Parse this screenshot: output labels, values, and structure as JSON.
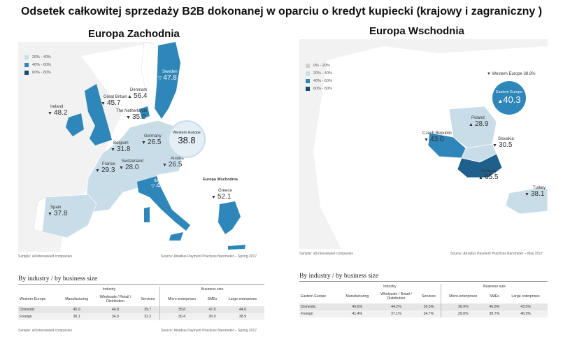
{
  "title": "Odsetek całkowitej sprzedaży B2B dokonanej w oparciu o kredyt kupiecki (krajowy i zagraniczny )",
  "colors": {
    "light": "#c9dde9",
    "mid": "#2e86b9",
    "dark": "#1f5f8c",
    "darkest": "#154a72",
    "gray": "#d0d0d0"
  },
  "west": {
    "panel_title": "Europa Zachodnia",
    "legend": [
      "20% - 40%",
      "40% - 60%",
      "60% - 80%"
    ],
    "countries": [
      {
        "name": "Ireland",
        "value": "48.2",
        "tri": "▼"
      },
      {
        "name": "Great Britain",
        "value": "45.7",
        "tri": "▼"
      },
      {
        "name": "Denmark",
        "value": "56.4",
        "tri": "▲"
      },
      {
        "name": "Sweden",
        "value": "47.8",
        "tri": "▽"
      },
      {
        "name": "The Netherlands",
        "value": "35.0",
        "tri": "▼"
      },
      {
        "name": "Germany",
        "value": "26.5",
        "tri": "▼"
      },
      {
        "name": "Belgium",
        "value": "31.8",
        "tri": "▼"
      },
      {
        "name": "France",
        "value": "29.3",
        "tri": "▼"
      },
      {
        "name": "Switzerland",
        "value": "28.0",
        "tri": "▼"
      },
      {
        "name": "Austria",
        "value": "26.5",
        "tri": "▼"
      },
      {
        "name": "Italy",
        "value": "42.5",
        "tri": "▽"
      },
      {
        "name": "Spain",
        "value": "37.8",
        "tri": "▼"
      },
      {
        "name": "Greece",
        "value": "52.1",
        "tri": "▼"
      }
    ],
    "bubble": {
      "label": "Western Europe",
      "value": "38.8"
    },
    "overlay_label": "Europa Wschodnia",
    "sample": "Sample: all interviewed companies",
    "source": "Source: Atradius Payment Practices Barometer – Spring 2017",
    "section_title": "By industry / by business size",
    "table": {
      "group_industry": "Industry",
      "group_size": "Business size",
      "region": "Western Europe",
      "headers": [
        "Manufacturing",
        "Wholesale / Retail / Distribution",
        "Services",
        "Micro-enterprises",
        "SMEs",
        "Large enterprises"
      ],
      "rows": [
        {
          "label": "Domestic",
          "values": [
            "45.9",
            "44.8",
            "39.7",
            "35.8",
            "47.0",
            "44.0"
          ]
        },
        {
          "label": "Foreign",
          "values": [
            "39.1",
            "34.0",
            "33.2",
            "30.4",
            "36.0",
            "38.9"
          ]
        }
      ],
      "sample": "Sample: all interviewed companies",
      "source": "Source: Atradius Payment Practices Barometer – Spring 2017"
    }
  },
  "east": {
    "panel_title": "Europa Wschodnia",
    "legend": [
      "0% - 20%",
      "20% - 40%",
      "40% - 60%",
      "60% - 80%"
    ],
    "countries": [
      {
        "name": "Poland",
        "value": "28.9",
        "tri": "▲"
      },
      {
        "name": "Czech Republic",
        "value": "43.0",
        "tri": "▼"
      },
      {
        "name": "Slovakia",
        "value": "30.5",
        "tri": "▼"
      },
      {
        "name": "Hungary",
        "value": "65.5",
        "tri": "▲"
      },
      {
        "name": "Turkey",
        "value": "38.1",
        "tri": "▼"
      }
    ],
    "western_ref": {
      "label": "Western Europe",
      "value": "38.8%",
      "tri": "▼"
    },
    "bubble": {
      "label": "Eastern Europe",
      "value": "40.3",
      "tri": "▲"
    },
    "sample": "Sample: all interviewed companies",
    "source": "Source: Atradius Payment Practices Barometer – May 2017",
    "section_title": "By industry / by business size",
    "table": {
      "group_industry": "Industry",
      "group_size": "Business size",
      "region": "Eastern Europe",
      "headers": [
        "Manufacturing",
        "Wholesale / Retail / Distribution",
        "Services",
        "Micro-enterprises",
        "SMEs",
        "Large enterprises"
      ],
      "rows": [
        {
          "label": "Domestic",
          "values": [
            "45.6%",
            "44.2%",
            "39.5%",
            "36.9%",
            "46.8%",
            "43.5%"
          ]
        },
        {
          "label": "Foreign",
          "values": [
            "41.4%",
            "37.1%",
            "34.7%",
            "29.0%",
            "39.7%",
            "46.3%"
          ]
        }
      ]
    }
  }
}
